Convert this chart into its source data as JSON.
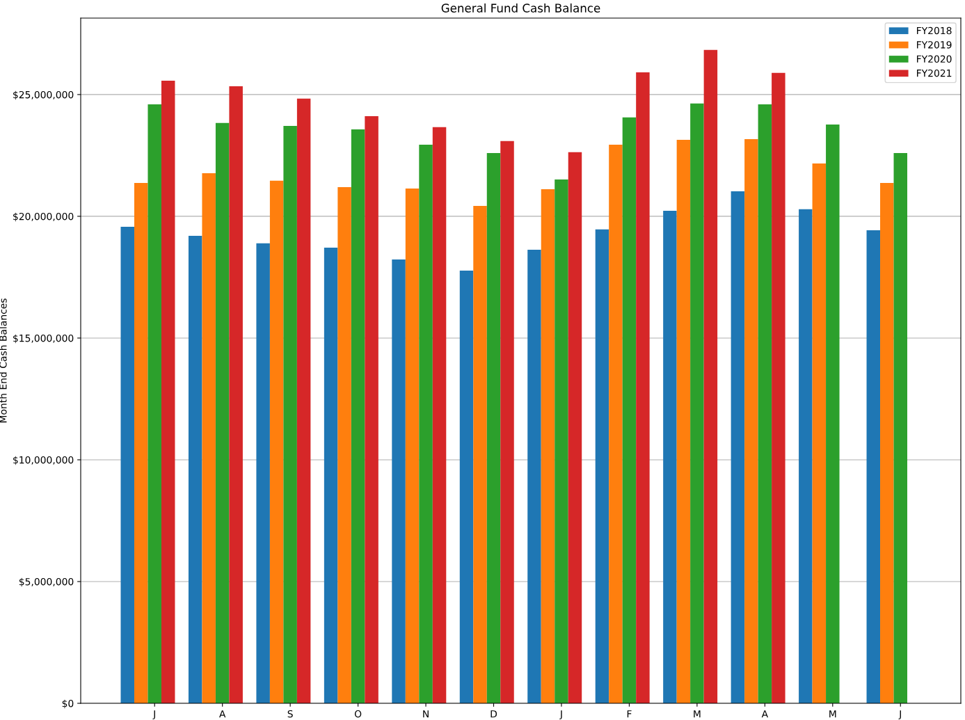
{
  "chart_data": {
    "type": "bar",
    "title": "General Fund Cash Balance",
    "ylabel": "Month End Cash Balances",
    "categories": [
      "J",
      "A",
      "S",
      "O",
      "N",
      "D",
      "J",
      "F",
      "M",
      "A",
      "M",
      "J"
    ],
    "series": [
      {
        "name": "FY2018",
        "color": "#1f77b4",
        "values": [
          19570000,
          19200000,
          18890000,
          18710000,
          18230000,
          17770000,
          18630000,
          19460000,
          20230000,
          21030000,
          20290000,
          19430000
        ]
      },
      {
        "name": "FY2019",
        "color": "#ff7f0e",
        "values": [
          21370000,
          21770000,
          21460000,
          21200000,
          21140000,
          20430000,
          21110000,
          22940000,
          23140000,
          23170000,
          22170000,
          21370000
        ]
      },
      {
        "name": "FY2020",
        "color": "#2ca02c",
        "values": [
          24600000,
          23830000,
          23710000,
          23570000,
          22940000,
          22600000,
          21510000,
          24060000,
          24630000,
          24600000,
          23770000,
          22600000
        ]
      },
      {
        "name": "FY2021",
        "color": "#d62728",
        "values": [
          25570000,
          25340000,
          24830000,
          24110000,
          23660000,
          23090000,
          22630000,
          25910000,
          26830000,
          25890000,
          null,
          null
        ]
      }
    ],
    "ylim": [
      0,
      28140000
    ],
    "yticks": [
      {
        "value": 0,
        "label": "$0"
      },
      {
        "value": 5000000,
        "label": "$5,000,000"
      },
      {
        "value": 10000000,
        "label": "$10,000,000"
      },
      {
        "value": 15000000,
        "label": "$15,000,000"
      },
      {
        "value": 20000000,
        "label": "$20,000,000"
      },
      {
        "value": 25000000,
        "label": "$25,000,000"
      }
    ],
    "grid": "y",
    "legend": "top right"
  }
}
